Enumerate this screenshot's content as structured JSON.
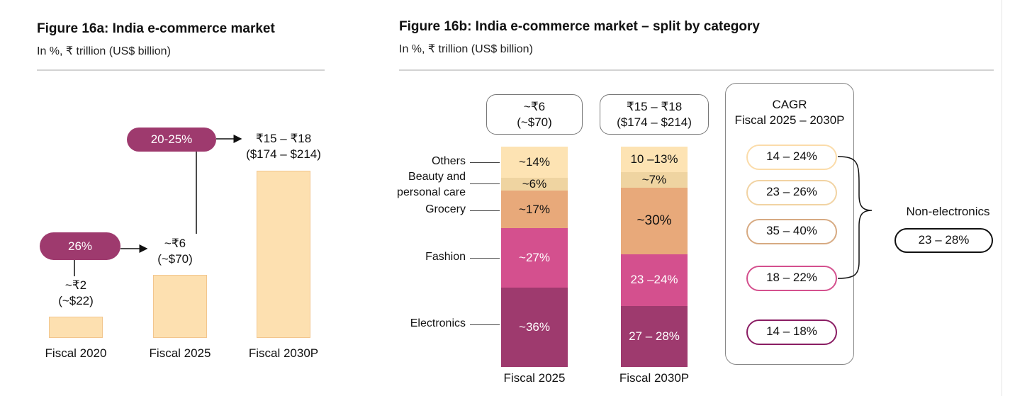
{
  "chart_data": [
    {
      "type": "bar",
      "title": "Figure 16a: India e-commerce market",
      "subtitle": "In %, ₹ trillion (US$ billion)",
      "categories": [
        "Fiscal 2020",
        "Fiscal 2025",
        "Fiscal 2030P"
      ],
      "values": [
        2,
        6,
        16.5
      ],
      "labels": [
        [
          "~₹2",
          "(~$22)"
        ],
        [
          "~₹6",
          "(~$70)"
        ],
        [
          "₹15 – ₹18",
          "($174 – $214)"
        ]
      ],
      "growth": [
        {
          "from": "Fiscal 2020",
          "to": "Fiscal 2025",
          "label": "26%"
        },
        {
          "from": "Fiscal 2025",
          "to": "Fiscal 2030P",
          "label": "20-25%"
        }
      ],
      "colors": {
        "bar": "#fde0b0",
        "pill": "#9e3a6e"
      }
    },
    {
      "type": "bar",
      "stacked": true,
      "title": "Figure 16b: India e-commerce market – split by category",
      "subtitle": "In %, ₹ trillion (US$ billion)",
      "categories": [
        "Fiscal 2025",
        "Fiscal 2030P"
      ],
      "totals": [
        [
          "~₹6",
          "(~$70)"
        ],
        [
          "₹15 – ₹18",
          "($174 – $214)"
        ]
      ],
      "series": [
        {
          "name": "Electronics",
          "values": [
            36,
            27.5
          ],
          "labels": [
            "~36%",
            "27 – 28%"
          ],
          "color": "#9e3a6e",
          "cagr": "14 – 18%"
        },
        {
          "name": "Fashion",
          "values": [
            27,
            23.5
          ],
          "labels": [
            "~27%",
            "23 –24%"
          ],
          "color": "#d4508e",
          "cagr": "18 – 22%"
        },
        {
          "name": "Grocery",
          "values": [
            17,
            30
          ],
          "labels": [
            "~17%",
            "~30%"
          ],
          "color": "#e8a97a",
          "cagr": "35 – 40%"
        },
        {
          "name": "Beauty and personal care",
          "values": [
            6,
            7
          ],
          "labels": [
            "~6%",
            "~7%"
          ],
          "color": "#efd4a1",
          "cagr": "23 – 26%"
        },
        {
          "name": "Others",
          "values": [
            14,
            11.5
          ],
          "labels": [
            "~14%",
            "10 –13%"
          ],
          "color": "#fde3b3",
          "cagr": "14 – 24%"
        }
      ],
      "cagr_title": [
        "CAGR",
        "Fiscal 2025 – 2030P"
      ],
      "non_electronics": {
        "label": "Non-electronics",
        "value": "23 – 28%"
      }
    }
  ]
}
